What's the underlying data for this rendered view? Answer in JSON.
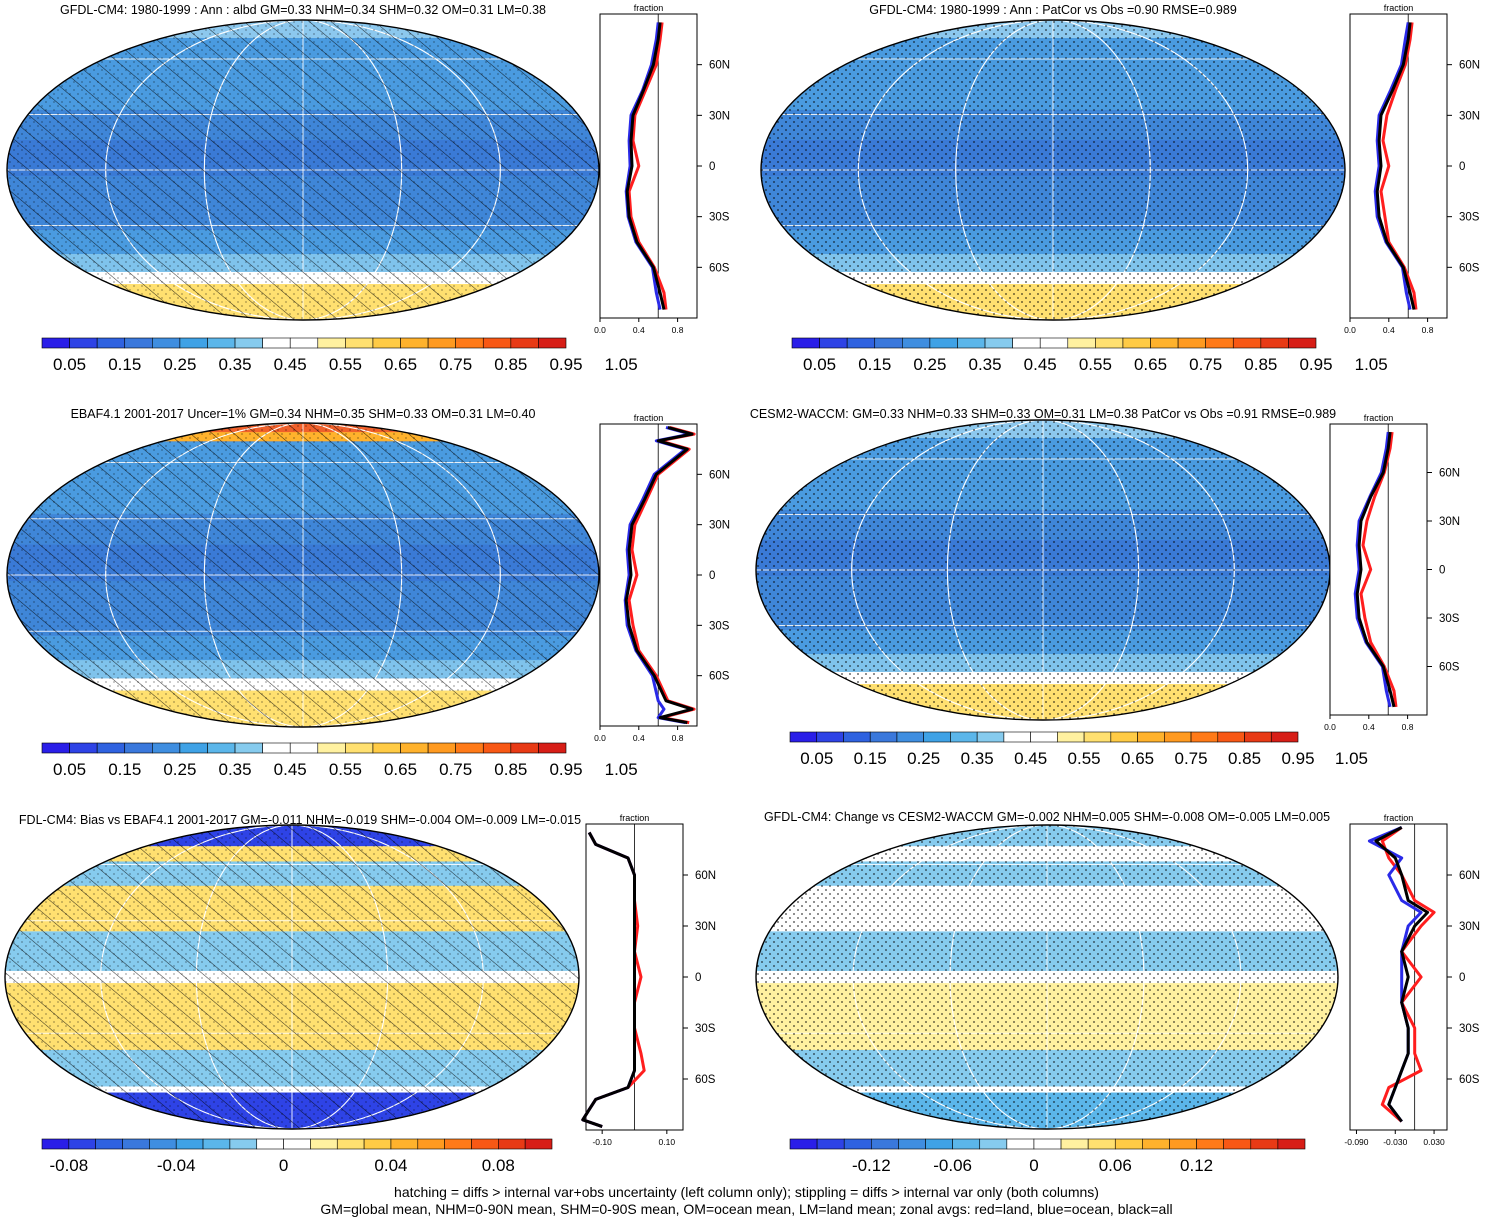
{
  "footer": {
    "line1": "hatching = diffs > internal var+obs uncertainty (left column only); stippling = diffs > internal var only (both columns)",
    "line2": "GM=global mean, NHM=0-90N mean, SHM=0-90S mean, OM=ocean mean, LM=land mean; zonal avgs: red=land, blue=ocean, black=all"
  },
  "palette": {
    "absolute": [
      "#2a1ee8",
      "#2e43e6",
      "#2f62e0",
      "#3a78dc",
      "#3f8ee0",
      "#3fa2e6",
      "#5bb6ea",
      "#86cbee",
      "#ffffff",
      "#ffffff",
      "#fff1a0",
      "#ffe070",
      "#ffcb45",
      "#ffb22c",
      "#ff9a20",
      "#ff7a18",
      "#f85815",
      "#e83a15",
      "#d71e17"
    ],
    "difference": [
      "#2a1ee8",
      "#2e43e6",
      "#2f62e0",
      "#3a78dc",
      "#3f8ee0",
      "#3fa2e6",
      "#5bb6ea",
      "#86cbee",
      "#ffffff",
      "#ffffff",
      "#fff1a0",
      "#ffe070",
      "#ffcb45",
      "#ffb22c",
      "#ff9a20",
      "#ff7a18",
      "#f85815",
      "#e83a15",
      "#d71e17"
    ],
    "land": "#ff1e1e",
    "ocean": "#2a2ae8",
    "all": "#000000"
  },
  "chart_data": [
    {
      "type": "heatmap",
      "id": "p1",
      "title": "GFDL-CM4: 1980-1999 : Ann : albd GM=0.33 NHM=0.34 SHM=0.32 OM=0.31 LM=0.38",
      "colorbar": {
        "labels": [
          "0.05",
          "0.15",
          "0.25",
          "0.35",
          "0.45",
          "0.55",
          "0.65",
          "0.75",
          "0.85",
          "0.95",
          "1.05"
        ]
      },
      "zonal": {
        "xlabel": "fraction",
        "xlim": [
          0,
          1.0
        ],
        "xticks": [
          "0.0",
          "0.4",
          "0.8"
        ],
        "yticks": [
          "60N",
          "30N",
          "0",
          "30S",
          "60S"
        ],
        "lat_range": [
          -90,
          90
        ],
        "lat": [
          85,
          75,
          60,
          45,
          30,
          15,
          0,
          -15,
          -30,
          -45,
          -60,
          -75,
          -85
        ],
        "all": [
          0.62,
          0.6,
          0.55,
          0.45,
          0.34,
          0.32,
          0.33,
          0.28,
          0.3,
          0.38,
          0.55,
          0.62,
          0.66
        ],
        "land": [
          0.64,
          0.62,
          0.58,
          0.47,
          0.36,
          0.34,
          0.4,
          0.3,
          0.32,
          0.4,
          0.56,
          0.66,
          0.68
        ],
        "ocean": [
          0.6,
          0.58,
          0.53,
          0.44,
          0.32,
          0.3,
          0.31,
          0.27,
          0.29,
          0.37,
          0.54,
          0.58,
          0.62
        ]
      },
      "pattern": "hatch"
    },
    {
      "type": "heatmap",
      "id": "p2",
      "title": "GFDL-CM4: 1980-1999 : Ann : PatCor vs Obs =0.90 RMSE=0.989",
      "colorbar": {
        "labels": [
          "0.05",
          "0.15",
          "0.25",
          "0.35",
          "0.45",
          "0.55",
          "0.65",
          "0.75",
          "0.85",
          "0.95",
          "1.05"
        ]
      },
      "zonal": {
        "xlabel": "fraction",
        "xlim": [
          0,
          1.0
        ],
        "xticks": [
          "0.0",
          "0.4",
          "0.8"
        ],
        "yticks": [
          "60N",
          "30N",
          "0",
          "30S",
          "60S"
        ],
        "lat_range": [
          -90,
          90
        ],
        "lat": [
          85,
          75,
          60,
          45,
          30,
          15,
          0,
          -15,
          -30,
          -45,
          -60,
          -75,
          -85
        ],
        "all": [
          0.62,
          0.6,
          0.55,
          0.44,
          0.32,
          0.3,
          0.32,
          0.28,
          0.3,
          0.38,
          0.55,
          0.62,
          0.66
        ],
        "land": [
          0.64,
          0.62,
          0.57,
          0.47,
          0.38,
          0.34,
          0.4,
          0.32,
          0.36,
          0.4,
          0.56,
          0.66,
          0.68
        ],
        "ocean": [
          0.6,
          0.57,
          0.53,
          0.42,
          0.3,
          0.28,
          0.3,
          0.26,
          0.28,
          0.37,
          0.54,
          0.58,
          0.62
        ]
      },
      "pattern": "stipple"
    },
    {
      "type": "heatmap",
      "id": "p3",
      "title": "EBAF4.1 2001-2017 Uncer=1% GM=0.34 NHM=0.35 SHM=0.33 OM=0.31 LM=0.40",
      "colorbar": {
        "labels": [
          "0.05",
          "0.15",
          "0.25",
          "0.35",
          "0.45",
          "0.55",
          "0.65",
          "0.75",
          "0.85",
          "0.95",
          "1.05"
        ]
      },
      "zonal": {
        "xlabel": "fraction",
        "xlim": [
          0,
          1.0
        ],
        "xticks": [
          "0.0",
          "0.4",
          "0.8"
        ],
        "yticks": [
          "60N",
          "30N",
          "0",
          "30S",
          "60S"
        ],
        "lat_range": [
          -90,
          90
        ],
        "lat": [
          88,
          84,
          80,
          75,
          60,
          45,
          30,
          15,
          0,
          -15,
          -30,
          -45,
          -60,
          -75,
          -80,
          -85,
          -88
        ],
        "all": [
          0.7,
          0.95,
          0.6,
          0.9,
          0.58,
          0.46,
          0.33,
          0.3,
          0.32,
          0.27,
          0.3,
          0.38,
          0.56,
          0.68,
          0.95,
          0.62,
          0.9
        ],
        "land": [
          0.72,
          0.97,
          0.62,
          0.92,
          0.6,
          0.48,
          0.36,
          0.33,
          0.38,
          0.3,
          0.34,
          0.4,
          0.58,
          0.7,
          0.97,
          0.64,
          0.92
        ],
        "ocean": [
          0.68,
          0.93,
          0.58,
          0.88,
          0.56,
          0.44,
          0.31,
          0.28,
          0.3,
          0.26,
          0.28,
          0.37,
          0.54,
          0.6,
          0.66,
          0.6,
          0.88
        ]
      },
      "pattern": "hatch"
    },
    {
      "type": "heatmap",
      "id": "p4",
      "title": "CESM2-WACCM: GM=0.33 NHM=0.33 SHM=0.33 OM=0.31 LM=0.38 PatCor vs Obs =0.91 RMSE=0.989",
      "colorbar": {
        "labels": [
          "0.05",
          "0.15",
          "0.25",
          "0.35",
          "0.45",
          "0.55",
          "0.65",
          "0.75",
          "0.85",
          "0.95",
          "1.05"
        ]
      },
      "zonal": {
        "xlabel": "fraction",
        "xlim": [
          0,
          1.0
        ],
        "xticks": [
          "0.0",
          "0.4",
          "0.8"
        ],
        "yticks": [
          "60N",
          "30N",
          "0",
          "30S",
          "60S"
        ],
        "lat_range": [
          -90,
          90
        ],
        "lat": [
          85,
          75,
          60,
          45,
          30,
          15,
          0,
          -15,
          -30,
          -45,
          -60,
          -75,
          -85
        ],
        "all": [
          0.62,
          0.6,
          0.55,
          0.42,
          0.32,
          0.3,
          0.32,
          0.28,
          0.3,
          0.38,
          0.55,
          0.62,
          0.66
        ],
        "land": [
          0.64,
          0.62,
          0.56,
          0.46,
          0.38,
          0.34,
          0.42,
          0.32,
          0.36,
          0.42,
          0.56,
          0.66,
          0.68
        ],
        "ocean": [
          0.6,
          0.58,
          0.53,
          0.41,
          0.3,
          0.28,
          0.3,
          0.26,
          0.28,
          0.37,
          0.54,
          0.58,
          0.62
        ]
      },
      "pattern": "stipple"
    },
    {
      "type": "heatmap",
      "id": "p5",
      "title": "FDL-CM4: Bias vs EBAF4.1 2001-2017 GM=-0.011 NHM=-0.019 SHM=-0.004 OM=-0.009 LM=-0.015",
      "colorbar": {
        "labels": [
          "-0.08",
          "-0.04",
          "0",
          "0.04",
          "0.08"
        ]
      },
      "zonal": {
        "xlabel": "fraction",
        "xlim": [
          -0.15,
          0.15
        ],
        "xticks": [
          "-0.10",
          "0.10"
        ],
        "yticks": [
          "60N",
          "30N",
          "0",
          "30S",
          "60S"
        ],
        "lat_range": [
          -90,
          90
        ],
        "lat": [
          85,
          78,
          70,
          60,
          45,
          30,
          15,
          0,
          -15,
          -30,
          -45,
          -55,
          -65,
          -72,
          -78,
          -84,
          -88
        ],
        "all": [
          -0.14,
          -0.12,
          -0.02,
          0.0,
          0.0,
          0.0,
          0.0,
          0.0,
          0.0,
          0.0,
          0.0,
          0.0,
          -0.02,
          -0.12,
          -0.14,
          -0.16,
          -0.1
        ],
        "land": [
          -0.14,
          -0.12,
          -0.02,
          0.0,
          0.0,
          0.01,
          0.0,
          0.02,
          0.0,
          0.0,
          0.02,
          0.03,
          -0.02,
          -0.12,
          -0.14,
          -0.16,
          -0.1
        ],
        "ocean": [
          -0.14,
          -0.12,
          -0.02,
          0.0,
          0.0,
          0.0,
          0.0,
          0.0,
          0.0,
          0.0,
          0.0,
          0.0,
          -0.02,
          -0.12,
          -0.14,
          -0.16,
          -0.1
        ]
      },
      "pattern": "hatch"
    },
    {
      "type": "heatmap",
      "id": "p6",
      "title": "GFDL-CM4: Change vs CESM2-WACCM GM=-0.002 NHM=0.005 SHM=-0.008 OM=-0.005 LM=0.005",
      "colorbar": {
        "labels": [
          "-0.12",
          "-0.06",
          "0",
          "0.06",
          "0.12"
        ]
      },
      "zonal": {
        "xlabel": "fraction",
        "xlim": [
          -0.1,
          0.05
        ],
        "xticks": [
          "-0.090",
          "-0.030",
          "0.030"
        ],
        "yticks": [
          "60N",
          "30N",
          "0",
          "30S",
          "60S"
        ],
        "lat_range": [
          -90,
          90
        ],
        "lat": [
          88,
          80,
          70,
          60,
          45,
          38,
          30,
          15,
          0,
          -15,
          -30,
          -45,
          -55,
          -65,
          -75,
          -85
        ],
        "all": [
          -0.02,
          -0.06,
          -0.03,
          -0.02,
          -0.01,
          0.02,
          0.0,
          -0.02,
          -0.01,
          -0.02,
          -0.01,
          -0.01,
          -0.02,
          -0.03,
          -0.04,
          -0.02
        ],
        "land": [
          -0.02,
          -0.05,
          -0.04,
          -0.02,
          0.0,
          0.03,
          0.01,
          -0.02,
          0.01,
          -0.02,
          0.0,
          0.0,
          0.01,
          -0.04,
          -0.05,
          -0.02
        ],
        "ocean": [
          -0.02,
          -0.07,
          -0.02,
          -0.04,
          -0.02,
          0.01,
          -0.01,
          -0.02,
          -0.02,
          -0.02,
          -0.01,
          -0.01,
          -0.02,
          -0.03,
          -0.04,
          -0.02
        ]
      },
      "pattern": "stipple"
    }
  ]
}
